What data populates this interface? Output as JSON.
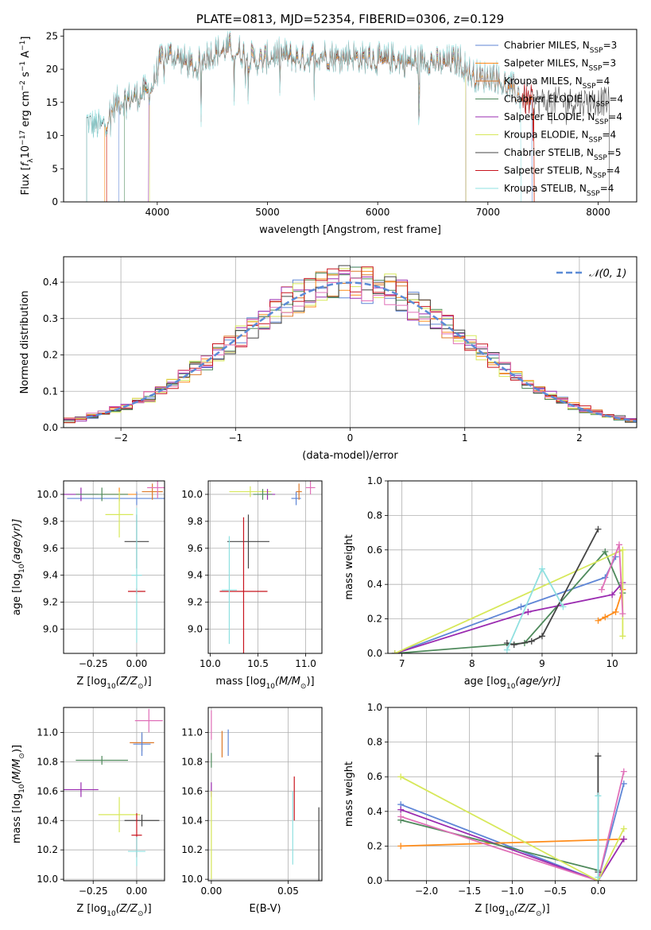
{
  "colors": {
    "Chabrier MILES": "#5f86d6",
    "Salpeter MILES": "#ff8c1a",
    "Kroupa MILES": "#dd7a2a",
    "Chabrier ELODIE": "#4f8a5c",
    "Salpeter ELODIE": "#9a2bb0",
    "Kroupa ELODIE": "#d7e85a",
    "Chabrier STELIB": "#454545",
    "Salpeter STELIB": "#c8141e",
    "Kroupa STELIB": "#8fe0e0",
    "pink": "#e070b8",
    "normal_curve": "#5b8bd6"
  },
  "chart_data": [
    {
      "id": "spectrum",
      "type": "line",
      "title": "PLATE=0813, MJD=52354, FIBERID=0306, z=0.129",
      "xlabel": "wavelength [Angstrom, rest frame]",
      "ylabel_parts": [
        "Flux [",
        "f",
        "λ",
        "10",
        "−17",
        " erg cm",
        "−2",
        " s",
        "−1",
        " A",
        "−1",
        "]"
      ],
      "xlim": [
        3150,
        8350
      ],
      "ylim": [
        0,
        26
      ],
      "xticks": [
        4000,
        5000,
        6000,
        7000,
        8000
      ],
      "xticklabels": [
        "4000",
        "5000",
        "6000",
        "7000",
        "8000"
      ],
      "yticks": [
        0,
        5,
        10,
        15,
        20,
        25
      ],
      "yticklabels": [
        "0",
        "5",
        "10",
        "15",
        "20",
        "25"
      ],
      "grid": false,
      "legend_location": "upper right",
      "spectrum_x": [
        3360,
        3400,
        3500,
        3560,
        3650,
        3750,
        3850,
        3950,
        4050,
        4150,
        4250,
        4350,
        4450,
        4550,
        4650,
        4750,
        4850,
        4950,
        5050,
        5150,
        5250,
        5350,
        5450,
        5550,
        5650,
        5750,
        5850,
        5950,
        6050,
        6150,
        6250,
        6350,
        6450,
        6550,
        6650,
        6750,
        6850,
        6950,
        7050,
        7150,
        7250,
        7350,
        7450,
        7550
      ],
      "spectrum_y": [
        12,
        11.5,
        11,
        13,
        15,
        15.5,
        16,
        17,
        22,
        22,
        21,
        20,
        22,
        22.5,
        23,
        22.5,
        21.5,
        21,
        22,
        22,
        21.5,
        21.5,
        22,
        22,
        21.5,
        22,
        21.5,
        21.5,
        21,
        21.5,
        21,
        21,
        21.5,
        20.5,
        21,
        21,
        19,
        18.5,
        19,
        17.5,
        16.5,
        15,
        15,
        15
      ],
      "series": [
        {
          "name_parts": [
            "Chabrier MILES, N",
            "SSP",
            "=3"
          ],
          "color": "Chabrier MILES",
          "xrange": [
            3650,
            7400
          ]
        },
        {
          "name_parts": [
            "Salpeter MILES, N",
            "SSP",
            "=3"
          ],
          "color": "Salpeter MILES",
          "xrange": [
            3520,
            7420
          ]
        },
        {
          "name_parts": [
            "Kroupa MILES, N",
            "SSP",
            "=4"
          ],
          "color": "Kroupa MILES",
          "xrange": [
            3540,
            7420
          ]
        },
        {
          "name_parts": [
            "Chabrier ELODIE, N",
            "SSP",
            "=4"
          ],
          "color": "Chabrier ELODIE",
          "xrange": [
            3700,
            6800
          ]
        },
        {
          "name_parts": [
            "Salpeter ELODIE, N",
            "SSP",
            "=4"
          ],
          "color": "Salpeter ELODIE",
          "xrange": [
            3920,
            6800
          ]
        },
        {
          "name_parts": [
            "Kroupa ELODIE, N",
            "SSP",
            "=4"
          ],
          "color": "Kroupa ELODIE",
          "xrange": [
            3930,
            6800
          ]
        },
        {
          "name_parts": [
            "Chabrier STELIB, N",
            "SSP",
            "=5"
          ],
          "color": "Chabrier STELIB",
          "xrange": [
            3360,
            8100
          ]
        },
        {
          "name_parts": [
            "Salpeter STELIB, N",
            "SSP",
            "=4"
          ],
          "color": "Salpeter STELIB",
          "xrange": [
            3540,
            7420
          ]
        },
        {
          "name_parts": [
            "Kroupa STELIB, N",
            "SSP",
            "=4"
          ],
          "color": "Kroupa STELIB",
          "xrange": [
            3360,
            7300
          ]
        }
      ]
    },
    {
      "id": "residuals",
      "type": "histogram",
      "xlabel": "(data-model)/error",
      "ylabel": "Normed distribution",
      "xlim": [
        -2.5,
        2.5
      ],
      "ylim": [
        0,
        0.47
      ],
      "xticks": [
        -2,
        -1,
        0,
        1,
        2
      ],
      "xticklabels": [
        "−2",
        "−1",
        "0",
        "1",
        "2"
      ],
      "yticks": [
        0,
        0.1,
        0.2,
        0.3,
        0.4
      ],
      "yticklabels": [
        "0.0",
        "0.1",
        "0.2",
        "0.3",
        "0.4"
      ],
      "grid": true,
      "legend_location": "upper right",
      "legend_label": "𝒩(0, 1)",
      "bin_width": 0.1,
      "n_histograms": 9
    },
    {
      "id": "age_vs_Z",
      "type": "errorbar",
      "xlabel_parts": [
        "Z [log",
        "10",
        "(Z/Z",
        "⊙",
        ")]"
      ],
      "ylabel_parts": [
        "age  [log",
        "10",
        "(age/yr)]"
      ],
      "xlim": [
        -0.42,
        0.16
      ],
      "ylim": [
        8.82,
        10.1
      ],
      "xticks": [
        -0.25,
        0
      ],
      "xticklabels": [
        "−0.25",
        "0.00"
      ],
      "yticks": [
        9.0,
        9.2,
        9.4,
        9.6,
        9.8,
        10.0
      ],
      "yticklabels": [
        "9.0",
        "9.2",
        "9.4",
        "9.6",
        "9.8",
        "10.0"
      ],
      "grid": true,
      "points": [
        {
          "color": "Chabrier MILES",
          "x": 0.0,
          "y": 9.97,
          "xerr": 0.4,
          "yerr": 0.05
        },
        {
          "color": "Salpeter MILES",
          "x": -0.1,
          "y": 10.0,
          "xerr": 0.1,
          "yerr": 0.05
        },
        {
          "color": "Salpeter ELODIE",
          "x": -0.32,
          "y": 10.0,
          "xerr": 0.1,
          "yerr": 0.05
        },
        {
          "color": "Chabrier ELODIE",
          "x": -0.2,
          "y": 10.0,
          "xerr": 0.15,
          "yerr": 0.05
        },
        {
          "color": "Kroupa ELODIE",
          "x": -0.1,
          "y": 9.85,
          "xerr": 0.08,
          "yerr": 0.17
        },
        {
          "color": "Kroupa MILES",
          "x": 0.09,
          "y": 10.02,
          "xerr": 0.06,
          "yerr": 0.06
        },
        {
          "color": "pink",
          "x": 0.12,
          "y": 10.05,
          "xerr": 0.06,
          "yerr": 0.08
        },
        {
          "color": "Chabrier STELIB",
          "x": 0.0,
          "y": 9.65,
          "xerr": 0.07,
          "yerr": 0.2
        },
        {
          "color": "Salpeter STELIB",
          "x": 0.0,
          "y": 9.28,
          "xerr": 0.05,
          "yerr": 0.02
        },
        {
          "color": "Kroupa STELIB",
          "x": 0.0,
          "y": 9.4,
          "xerr": 0.03,
          "yerr": 0.5
        }
      ]
    },
    {
      "id": "age_vs_mass",
      "type": "errorbar",
      "xlabel_parts": [
        "mass [log",
        "10",
        "(M/M",
        "⊙",
        ")]"
      ],
      "ylabel": "",
      "xlim": [
        9.98,
        11.17
      ],
      "ylim": [
        8.82,
        10.1
      ],
      "xticks": [
        10.0,
        10.5,
        11.0
      ],
      "xticklabels": [
        "10.0",
        "10.5",
        "11.0"
      ],
      "yticks": [
        9.0,
        9.2,
        9.4,
        9.6,
        9.8,
        10.0
      ],
      "yticklabels": [
        "9.0",
        "9.2",
        "9.4",
        "9.6",
        "9.8",
        "10.0"
      ],
      "grid": true,
      "points": [
        {
          "color": "Chabrier STELIB",
          "x": 10.4,
          "y": 9.65,
          "xerr": 0.22,
          "yerr": 0.2
        },
        {
          "color": "Salpeter STELIB",
          "x": 10.35,
          "y": 9.28,
          "xerr": 0.25,
          "yerr": 0.55
        },
        {
          "color": "Kroupa STELIB",
          "x": 10.2,
          "y": 9.29,
          "xerr": 0.08,
          "yerr": 0.4
        },
        {
          "color": "Kroupa ELODIE",
          "x": 10.42,
          "y": 10.02,
          "xerr": 0.22,
          "yerr": 0.04
        },
        {
          "color": "Salpeter ELODIE",
          "x": 10.6,
          "y": 10.0,
          "xerr": 0.08,
          "yerr": 0.04
        },
        {
          "color": "Chabrier ELODIE",
          "x": 10.55,
          "y": 10.0,
          "xerr": 0.1,
          "yerr": 0.04
        },
        {
          "color": "Chabrier MILES",
          "x": 10.9,
          "y": 9.97,
          "xerr": 0.05,
          "yerr": 0.05
        },
        {
          "color": "Kroupa MILES",
          "x": 10.93,
          "y": 10.02,
          "xerr": 0.03,
          "yerr": 0.06
        },
        {
          "color": "pink",
          "x": 11.05,
          "y": 10.05,
          "xerr": 0.05,
          "yerr": 0.05
        }
      ]
    },
    {
      "id": "weight_vs_age",
      "type": "line",
      "xlabel_parts": [
        "age  [log",
        "10",
        "(age/yr)]"
      ],
      "ylabel": "mass weight",
      "xlim": [
        6.8,
        10.35
      ],
      "ylim": [
        0,
        1.0
      ],
      "xticks": [
        7,
        8,
        9,
        10
      ],
      "xticklabels": [
        "7",
        "8",
        "9",
        "10"
      ],
      "yticks": [
        0,
        0.2,
        0.4,
        0.6,
        0.8,
        1.0
      ],
      "yticklabels": [
        "0.0",
        "0.2",
        "0.4",
        "0.6",
        "0.8",
        "1.0"
      ],
      "grid": true,
      "series": [
        {
          "color": "Chabrier MILES",
          "x": [
            6.9,
            8.7,
            9.9,
            10.05
          ],
          "y": [
            0.0,
            0.27,
            0.44,
            0.56
          ]
        },
        {
          "color": "Salpeter MILES",
          "x": [
            9.8,
            9.9,
            10.05,
            10.15
          ],
          "y": [
            0.19,
            0.21,
            0.24,
            0.37
          ]
        },
        {
          "color": "Chabrier ELODIE",
          "x": [
            6.9,
            8.75,
            9.9,
            10.15
          ],
          "y": [
            0.0,
            0.06,
            0.59,
            0.35
          ]
        },
        {
          "color": "Salpeter ELODIE",
          "x": [
            6.9,
            8.8,
            10.0,
            10.15
          ],
          "y": [
            0.0,
            0.24,
            0.34,
            0.41
          ]
        },
        {
          "color": "Kroupa ELODIE",
          "x": [
            6.9,
            10.15,
            10.15
          ],
          "y": [
            0.0,
            0.6,
            0.1
          ]
        },
        {
          "color": "pink",
          "x": [
            9.85,
            10.1,
            10.15
          ],
          "y": [
            0.37,
            0.63,
            0.23
          ]
        },
        {
          "color": "Chabrier STELIB",
          "x": [
            8.5,
            8.6,
            8.85,
            9.0,
            9.8
          ],
          "y": [
            0.06,
            0.05,
            0.07,
            0.1,
            0.72
          ]
        },
        {
          "color": "Kroupa STELIB",
          "x": [
            8.5,
            9.0,
            9.3
          ],
          "y": [
            0.02,
            0.49,
            0.27
          ]
        }
      ]
    },
    {
      "id": "mass_vs_Z",
      "type": "errorbar",
      "xlabel_parts": [
        "Z [log",
        "10",
        "(Z/Z",
        "⊙",
        ")]"
      ],
      "ylabel_parts": [
        "mass [log",
        "10",
        "(M/M",
        "⊙",
        ")]"
      ],
      "xlim": [
        -0.42,
        0.16
      ],
      "ylim": [
        9.99,
        11.17
      ],
      "xticks": [
        -0.25,
        0
      ],
      "xticklabels": [
        "−0.25",
        "0.00"
      ],
      "yticks": [
        10.0,
        10.2,
        10.4,
        10.6,
        10.8,
        11.0
      ],
      "yticklabels": [
        "10.0",
        "10.2",
        "10.4",
        "10.6",
        "10.8",
        "11.0"
      ],
      "grid": true,
      "points": [
        {
          "color": "pink",
          "x": 0.07,
          "y": 11.08,
          "xerr": 0.08,
          "yerr": 0.08
        },
        {
          "color": "Kroupa MILES",
          "x": 0.03,
          "y": 10.93,
          "xerr": 0.07,
          "yerr": 0.06
        },
        {
          "color": "Chabrier MILES",
          "x": 0.03,
          "y": 10.92,
          "xerr": 0.05,
          "yerr": 0.08
        },
        {
          "color": "Chabrier ELODIE",
          "x": -0.2,
          "y": 10.81,
          "xerr": 0.15,
          "yerr": 0.03
        },
        {
          "color": "Salpeter ELODIE",
          "x": -0.32,
          "y": 10.61,
          "xerr": 0.1,
          "yerr": 0.05
        },
        {
          "color": "Kroupa ELODIE",
          "x": -0.1,
          "y": 10.44,
          "xerr": 0.12,
          "yerr": 0.12
        },
        {
          "color": "Chabrier STELIB",
          "x": 0.03,
          "y": 10.4,
          "xerr": 0.1,
          "yerr": 0.04
        },
        {
          "color": "Salpeter STELIB",
          "x": 0.0,
          "y": 10.3,
          "xerr": 0.03,
          "yerr": 0.15
        },
        {
          "color": "Kroupa STELIB",
          "x": 0.0,
          "y": 10.19,
          "xerr": 0.05,
          "yerr": 0.1
        }
      ]
    },
    {
      "id": "mass_vs_ebv",
      "type": "errorbar",
      "xlabel": "E(B-V)",
      "ylabel": "",
      "xlim": [
        -0.002,
        0.072
      ],
      "ylim": [
        9.99,
        11.17
      ],
      "xticks": [
        0.0,
        0.05
      ],
      "xticklabels": [
        "0.00",
        "0.05"
      ],
      "yticks": [
        10.0,
        10.2,
        10.4,
        10.6,
        10.8,
        11.0
      ],
      "yticklabels": [
        "10.0",
        "10.2",
        "10.4",
        "10.6",
        "10.8",
        "11.0"
      ],
      "grid": true,
      "points": [
        {
          "color": "pink",
          "x": 0.0,
          "y": 11.05,
          "xerr": 0,
          "yerr": 0.1
        },
        {
          "color": "Chabrier MILES",
          "x": 0.011,
          "y": 10.93,
          "xerr": 0,
          "yerr": 0.09
        },
        {
          "color": "Kroupa MILES",
          "x": 0.007,
          "y": 10.92,
          "xerr": 0,
          "yerr": 0.09
        },
        {
          "color": "Chabrier ELODIE",
          "x": 0.0,
          "y": 10.81,
          "xerr": 0,
          "yerr": 0.05
        },
        {
          "color": "Salpeter ELODIE",
          "x": 0.0,
          "y": 10.61,
          "xerr": 0,
          "yerr": 0.05
        },
        {
          "color": "Kroupa ELODIE",
          "x": 0.0,
          "y": 10.3,
          "xerr": 0,
          "yerr": 0.3
        },
        {
          "color": "Kroupa STELIB",
          "x": 0.053,
          "y": 10.35,
          "xerr": 0,
          "yerr": 0.25
        },
        {
          "color": "Salpeter STELIB",
          "x": 0.054,
          "y": 10.55,
          "xerr": 0,
          "yerr": 0.15
        },
        {
          "color": "Chabrier STELIB",
          "x": 0.07,
          "y": 10.19,
          "xerr": 0,
          "yerr": 0.3
        }
      ]
    },
    {
      "id": "weight_vs_Z",
      "type": "line",
      "xlabel_parts": [
        "Z [log",
        "10",
        "(Z/Z",
        "⊙",
        ")]"
      ],
      "ylabel": "mass weight",
      "xlim": [
        -2.45,
        0.45
      ],
      "ylim": [
        0,
        1.0
      ],
      "xticks": [
        -2.0,
        -1.5,
        -1.0,
        -0.5,
        0.0
      ],
      "xticklabels": [
        "−2.0",
        "−1.5",
        "−1.0",
        "−0.5",
        "0.0"
      ],
      "yticks": [
        0,
        0.2,
        0.4,
        0.6,
        0.8,
        1.0
      ],
      "yticklabels": [
        "0.0",
        "0.2",
        "0.4",
        "0.6",
        "0.8",
        "1.0"
      ],
      "grid": true,
      "series": [
        {
          "color": "Chabrier MILES",
          "x": [
            -2.3,
            0.0,
            0.3
          ],
          "y": [
            0.44,
            0.0,
            0.56
          ]
        },
        {
          "color": "Salpeter MILES",
          "x": [
            -2.3,
            0.3
          ],
          "y": [
            0.2,
            0.24
          ]
        },
        {
          "color": "Salpeter ELODIE",
          "x": [
            -2.3,
            0.0,
            0.3
          ],
          "y": [
            0.41,
            0.0,
            0.24
          ]
        },
        {
          "color": "Chabrier ELODIE",
          "x": [
            -2.3,
            0.0
          ],
          "y": [
            0.35,
            0.06
          ]
        },
        {
          "color": "pink",
          "x": [
            -2.3,
            0.0,
            0.3
          ],
          "y": [
            0.37,
            0.0,
            0.63
          ]
        },
        {
          "color": "Kroupa ELODIE",
          "x": [
            -2.3,
            0.0,
            0.3
          ],
          "y": [
            0.6,
            0.0,
            0.3
          ]
        },
        {
          "color": "Chabrier STELIB",
          "x": [
            0.0,
            0.0
          ],
          "y": [
            0.05,
            0.72
          ]
        },
        {
          "color": "Kroupa STELIB",
          "x": [
            0.0,
            0.0
          ],
          "y": [
            0.02,
            0.49
          ]
        }
      ]
    }
  ]
}
